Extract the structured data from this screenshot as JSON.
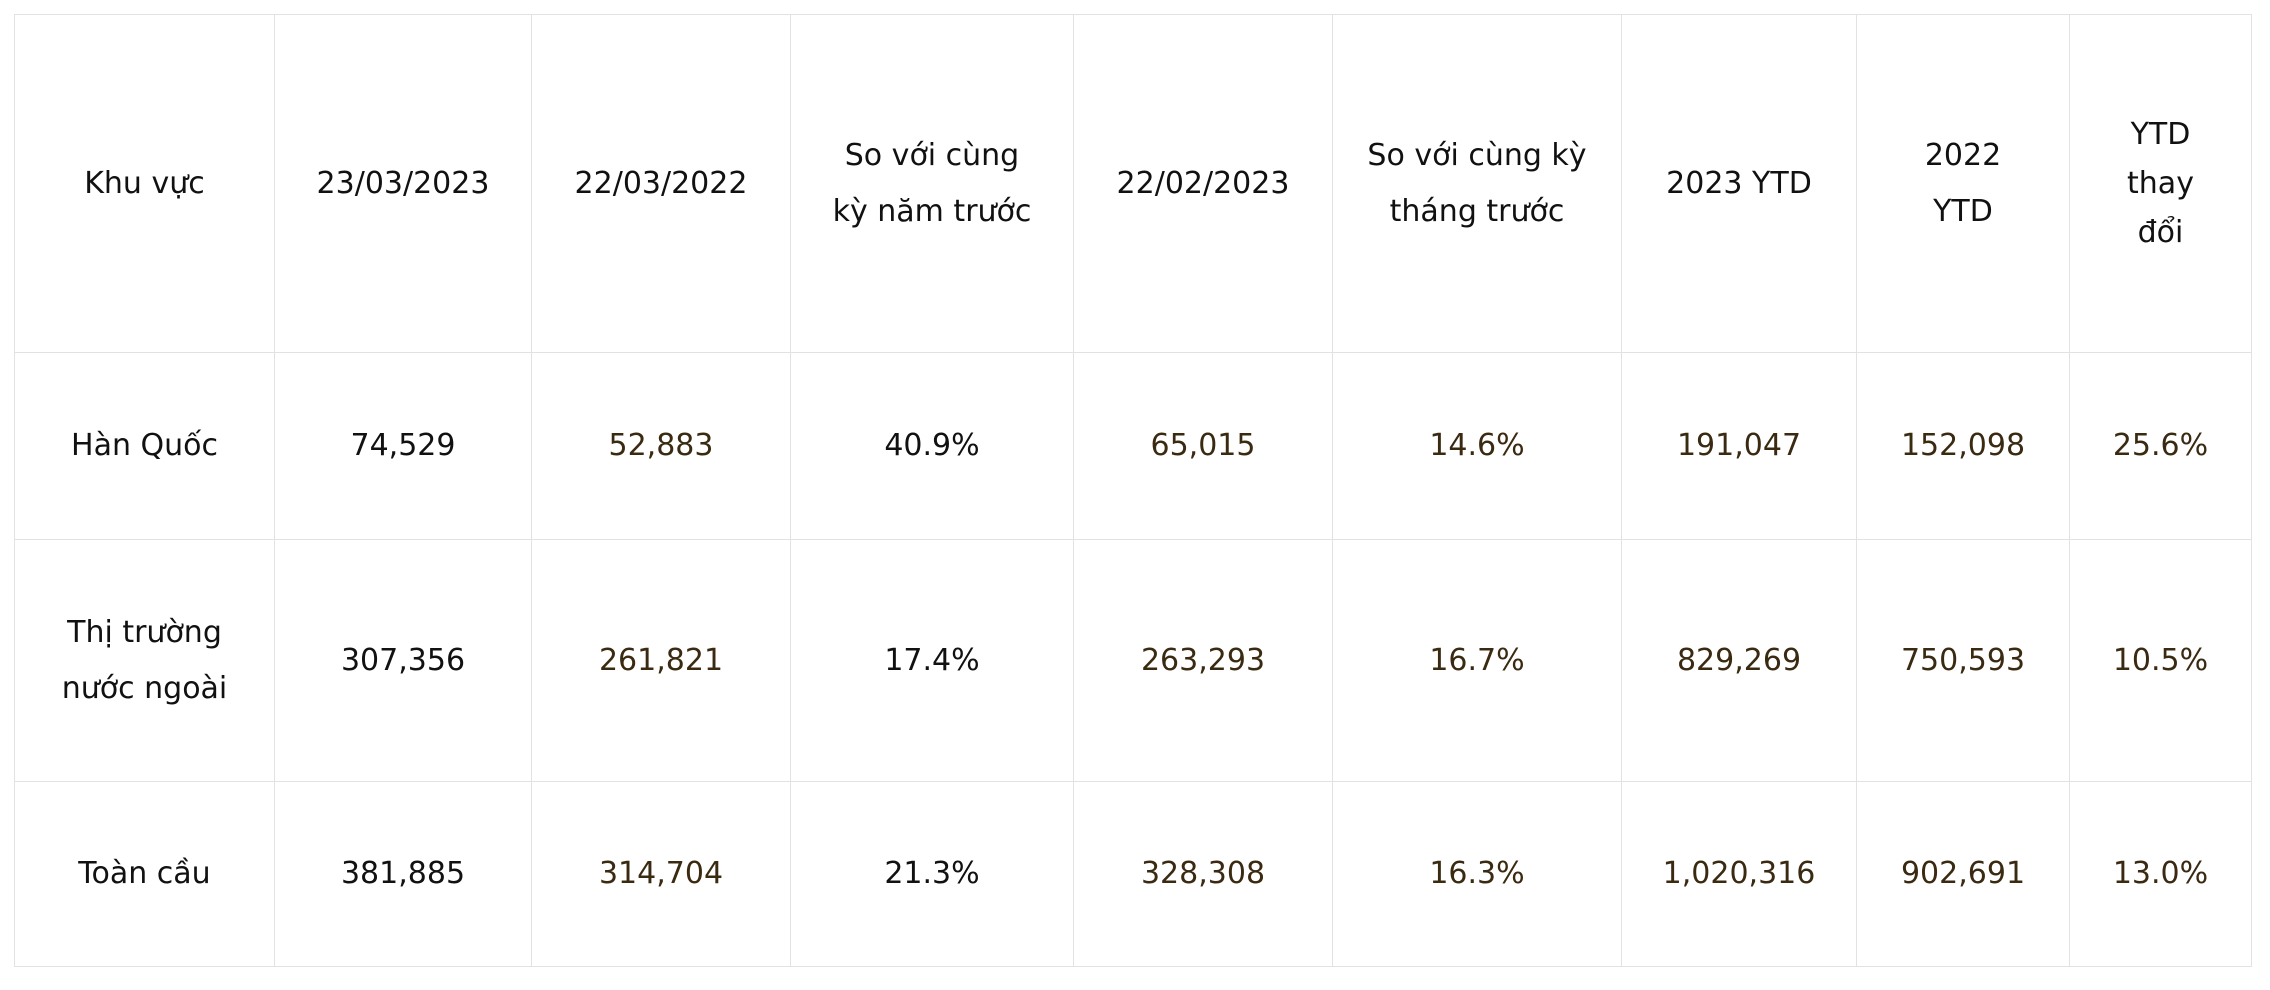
{
  "table": {
    "header": [
      [
        "Khu vực"
      ],
      [
        "23/03/2023"
      ],
      [
        "22/03/2022"
      ],
      [
        "So với cùng",
        "kỳ năm trước"
      ],
      [
        "22/02/2023"
      ],
      [
        "So với cùng kỳ",
        "tháng trước"
      ],
      [
        "2023 YTD"
      ],
      [
        "2022",
        "YTD"
      ],
      [
        "YTD",
        "thay",
        "đổi"
      ]
    ],
    "rows": [
      [
        [
          "Hàn Quốc"
        ],
        "74,529",
        "52,883",
        "40.9%",
        "65,015",
        "14.6%",
        "191,047",
        "152,098",
        "25.6%"
      ],
      [
        [
          "Thị trường",
          "nước ngoài"
        ],
        "307,356",
        "261,821",
        "17.4%",
        "263,293",
        "16.7%",
        "829,269",
        "750,593",
        "10.5%"
      ],
      [
        [
          "Toàn cầu"
        ],
        "381,885",
        "314,704",
        "21.3%",
        "328,308",
        "16.3%",
        "1,020,316",
        "902,691",
        "13.0%"
      ]
    ]
  }
}
